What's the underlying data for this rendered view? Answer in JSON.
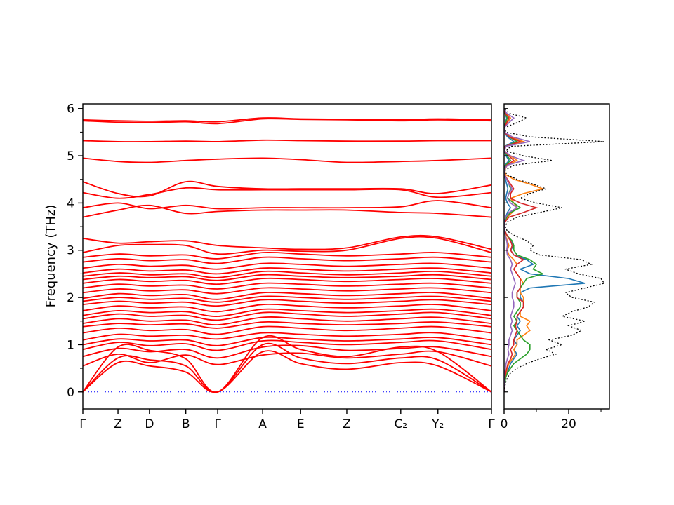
{
  "figure": {
    "background": "#ffffff"
  },
  "chart_data": {
    "type": "line",
    "description": "Phonon band structure (left) with phonon density of states (right)",
    "panels": [
      {
        "id": "bands",
        "ylabel": "Frequency (THz)",
        "ylim": [
          -0.36,
          6.1
        ],
        "yticks": [
          "0",
          "1",
          "2",
          "3",
          "4",
          "5",
          "6"
        ],
        "ytick_values": [
          0,
          1,
          2,
          3,
          4,
          5,
          6
        ],
        "yminor_values": [
          0.5,
          1.5,
          2.5,
          3.5,
          4.5,
          5.5
        ],
        "band_color": "#ff0000",
        "zero_line_color": "#0000ff",
        "kpath_labels": [
          "Γ",
          "Z",
          "D",
          "B",
          "Γ",
          "A",
          "E",
          "Z",
          "C₂",
          "Y₂",
          "Γ"
        ],
        "kpath_positions": [
          0,
          0.086,
          0.163,
          0.252,
          0.33,
          0.44,
          0.533,
          0.646,
          0.778,
          0.869,
          1.0
        ],
        "bands": [
          [
            0.0,
            0.62,
            0.55,
            0.42,
            0.0,
            0.85,
            0.6,
            0.48,
            0.62,
            0.55,
            0.0
          ],
          [
            0.0,
            0.72,
            0.68,
            0.55,
            0.0,
            1.0,
            0.72,
            0.6,
            0.72,
            0.68,
            0.0
          ],
          [
            0.0,
            0.95,
            0.88,
            0.7,
            0.0,
            1.15,
            0.9,
            0.75,
            0.95,
            0.85,
            0.0
          ],
          [
            0.55,
            0.8,
            0.62,
            0.78,
            0.58,
            0.78,
            0.82,
            0.72,
            0.8,
            0.85,
            0.55
          ],
          [
            0.75,
            0.92,
            0.85,
            0.9,
            0.72,
            0.95,
            0.98,
            0.88,
            0.92,
            0.95,
            0.75
          ],
          [
            0.9,
            1.05,
            0.98,
            1.02,
            0.88,
            1.08,
            1.05,
            1.0,
            1.05,
            1.08,
            0.9
          ],
          [
            1.0,
            1.12,
            1.08,
            1.1,
            0.98,
            1.15,
            1.12,
            1.08,
            1.12,
            1.15,
            1.0
          ],
          [
            1.1,
            1.22,
            1.18,
            1.2,
            1.12,
            1.25,
            1.22,
            1.18,
            1.22,
            1.25,
            1.1
          ],
          [
            1.25,
            1.35,
            1.3,
            1.32,
            1.22,
            1.38,
            1.35,
            1.3,
            1.35,
            1.38,
            1.25
          ],
          [
            1.38,
            1.45,
            1.42,
            1.44,
            1.35,
            1.48,
            1.45,
            1.42,
            1.45,
            1.48,
            1.38
          ],
          [
            1.45,
            1.55,
            1.5,
            1.52,
            1.42,
            1.58,
            1.55,
            1.5,
            1.55,
            1.58,
            1.45
          ],
          [
            1.55,
            1.65,
            1.6,
            1.62,
            1.52,
            1.68,
            1.65,
            1.6,
            1.65,
            1.68,
            1.55
          ],
          [
            1.62,
            1.72,
            1.68,
            1.7,
            1.6,
            1.75,
            1.72,
            1.68,
            1.72,
            1.75,
            1.62
          ],
          [
            1.72,
            1.82,
            1.78,
            1.8,
            1.7,
            1.85,
            1.82,
            1.78,
            1.82,
            1.85,
            1.72
          ],
          [
            1.85,
            1.92,
            1.88,
            1.9,
            1.82,
            1.95,
            1.92,
            1.88,
            1.92,
            1.95,
            1.85
          ],
          [
            1.92,
            2.0,
            1.96,
            1.98,
            1.9,
            2.02,
            2.0,
            1.96,
            2.0,
            2.02,
            1.92
          ],
          [
            1.98,
            2.08,
            2.04,
            2.06,
            1.96,
            2.1,
            2.08,
            2.04,
            2.08,
            2.1,
            1.98
          ],
          [
            2.1,
            2.18,
            2.14,
            2.16,
            2.08,
            2.2,
            2.18,
            2.14,
            2.18,
            2.2,
            2.1
          ],
          [
            2.2,
            2.28,
            2.24,
            2.26,
            2.18,
            2.3,
            2.28,
            2.24,
            2.28,
            2.3,
            2.2
          ],
          [
            2.3,
            2.38,
            2.34,
            2.36,
            2.28,
            2.4,
            2.38,
            2.34,
            2.38,
            2.4,
            2.3
          ],
          [
            2.38,
            2.45,
            2.42,
            2.44,
            2.36,
            2.48,
            2.45,
            2.42,
            2.45,
            2.48,
            2.38
          ],
          [
            2.45,
            2.52,
            2.48,
            2.5,
            2.42,
            2.55,
            2.52,
            2.48,
            2.52,
            2.55,
            2.45
          ],
          [
            2.52,
            2.6,
            2.56,
            2.58,
            2.5,
            2.62,
            2.6,
            2.56,
            2.6,
            2.62,
            2.52
          ],
          [
            2.62,
            2.7,
            2.66,
            2.68,
            2.6,
            2.72,
            2.7,
            2.66,
            2.7,
            2.72,
            2.62
          ],
          [
            2.75,
            2.82,
            2.78,
            2.8,
            2.72,
            2.85,
            2.82,
            2.78,
            2.82,
            2.85,
            2.75
          ],
          [
            2.85,
            2.92,
            2.88,
            2.9,
            2.82,
            2.95,
            2.92,
            2.88,
            2.92,
            2.95,
            2.85
          ],
          [
            2.95,
            3.1,
            3.12,
            3.1,
            2.92,
            3.0,
            2.98,
            3.0,
            3.25,
            3.25,
            2.95
          ],
          [
            3.25,
            3.15,
            3.18,
            3.2,
            3.1,
            3.05,
            3.02,
            3.05,
            3.28,
            3.28,
            3.02
          ],
          [
            3.7,
            3.85,
            3.95,
            3.78,
            3.82,
            3.85,
            3.85,
            3.85,
            3.8,
            3.78,
            3.7
          ],
          [
            3.9,
            4.0,
            3.88,
            3.95,
            3.88,
            3.9,
            3.9,
            3.9,
            3.92,
            4.05,
            3.9
          ],
          [
            4.22,
            4.1,
            4.18,
            4.32,
            4.28,
            4.28,
            4.28,
            4.28,
            4.28,
            4.12,
            4.22
          ],
          [
            4.45,
            4.2,
            4.15,
            4.45,
            4.35,
            4.3,
            4.3,
            4.3,
            4.3,
            4.2,
            4.38
          ],
          [
            4.95,
            4.88,
            4.86,
            4.9,
            4.93,
            4.95,
            4.92,
            4.86,
            4.88,
            4.9,
            4.95
          ],
          [
            5.32,
            5.3,
            5.3,
            5.31,
            5.3,
            5.33,
            5.32,
            5.31,
            5.31,
            5.32,
            5.32
          ],
          [
            5.74,
            5.71,
            5.7,
            5.72,
            5.68,
            5.78,
            5.77,
            5.76,
            5.74,
            5.76,
            5.74
          ],
          [
            5.76,
            5.74,
            5.73,
            5.74,
            5.72,
            5.8,
            5.78,
            5.77,
            5.76,
            5.78,
            5.76
          ]
        ]
      },
      {
        "id": "dos",
        "xlim": [
          0,
          32.6
        ],
        "xticks": [
          "0",
          "20"
        ],
        "xtick_values": [
          0,
          20
        ],
        "xminor_values": [
          10,
          30
        ],
        "freq_grid": {
          "start": 0,
          "step": 0.1,
          "count": 61
        },
        "total": {
          "name": "total-dos",
          "color": "#000000",
          "style": "dotted",
          "values": [
            0,
            0.2,
            0.5,
            1.0,
            2.0,
            4.0,
            7.0,
            11.0,
            16.0,
            13.0,
            18.0,
            14.0,
            21.0,
            24.0,
            20.0,
            25.0,
            18.0,
            21.0,
            26.0,
            28.0,
            21.0,
            19.0,
            25.0,
            31.0,
            30.0,
            23.0,
            19.0,
            27.0,
            24.0,
            11.0,
            8.0,
            9.0,
            7.0,
            3.5,
            1.0,
            0.4,
            1.0,
            4.0,
            11.0,
            18.0,
            10.0,
            5.0,
            8.0,
            13.0,
            9.0,
            4.0,
            0.8,
            0.4,
            3.0,
            15.0,
            6.0,
            0.6,
            2.0,
            31.0,
            8.0,
            0.5,
            0.3,
            4.0,
            7.0,
            1.5,
            0
          ]
        },
        "partials": [
          {
            "name": "pdos-1",
            "color": "#1f77b4",
            "values": [
              0,
              0.1,
              0.2,
              0.4,
              0.8,
              1.5,
              2,
              3,
              4,
              3,
              4,
              3,
              4,
              5,
              4,
              5,
              4,
              5,
              6,
              6,
              5,
              5,
              8,
              25,
              20,
              8,
              5,
              9,
              7,
              3,
              2,
              3,
              2,
              1,
              0.3,
              0.1,
              0.2,
              0.5,
              1,
              2,
              1,
              0.5,
              0.8,
              1.2,
              0.8,
              0.4,
              0.1,
              0.1,
              0.3,
              1.5,
              0.6,
              0.1,
              0.2,
              3,
              1,
              0.1,
              0.1,
              0.4,
              0.8,
              0.2,
              0
            ]
          },
          {
            "name": "pdos-2",
            "color": "#ff7f0e",
            "values": [
              0,
              0.1,
              0.2,
              0.3,
              0.6,
              1,
              1.5,
              2.5,
              3.5,
              3,
              4,
              4,
              6,
              8,
              7,
              8,
              5,
              5,
              6,
              6,
              6,
              5,
              5,
              6,
              5,
              4,
              3,
              4,
              3,
              1.5,
              1,
              1.5,
              1,
              0.5,
              0.2,
              0.1,
              0.3,
              1,
              2.5,
              4,
              3,
              2,
              6,
              12,
              8,
              3,
              0.5,
              0.2,
              1,
              4,
              2,
              0.2,
              0.5,
              6,
              2,
              0.2,
              0.1,
              1,
              2,
              0.5,
              0
            ]
          },
          {
            "name": "pdos-3",
            "color": "#2ca02c",
            "values": [
              0,
              0.1,
              0.3,
              0.5,
              1,
              2,
              3,
              5,
              7,
              8,
              8,
              6,
              5,
              4,
              3,
              4,
              3,
              4,
              5,
              5,
              4,
              4,
              5,
              6,
              7,
              12,
              9,
              10,
              8,
              4,
              3,
              3,
              2.5,
              1,
              0.3,
              0.1,
              0.2,
              0.8,
              2,
              5,
              3,
              1,
              1.5,
              2,
              1.5,
              0.8,
              0.2,
              0.1,
              0.5,
              2,
              1,
              0.1,
              0.3,
              4,
              1.5,
              0.1,
              0.1,
              0.5,
              1,
              0.3,
              0
            ]
          },
          {
            "name": "pdos-4",
            "color": "#d62728",
            "values": [
              0,
              0.05,
              0.15,
              0.3,
              0.5,
              0.8,
              1.2,
              2,
              2.5,
              2,
              3,
              3,
              3.5,
              4,
              3.5,
              4,
              4,
              5,
              6,
              6,
              4,
              4,
              5,
              5,
              5,
              4,
              3,
              4,
              6,
              3,
              2,
              2.5,
              2,
              1,
              0.3,
              0.1,
              0.3,
              1.5,
              6,
              10,
              5,
              2,
              2,
              3,
              2,
              1,
              0.2,
              0.1,
              0.8,
              3,
              1.5,
              0.2,
              0.3,
              5,
              1.5,
              0.1,
              0.1,
              0.8,
              1.5,
              0.4,
              0
            ]
          },
          {
            "name": "pdos-5",
            "color": "#9467bd",
            "values": [
              0,
              0.02,
              0.05,
              0.1,
              0.2,
              0.4,
              0.6,
              1,
              1.5,
              1.2,
              1.5,
              1.5,
              2,
              2.5,
              2,
              2.5,
              2,
              2.5,
              3,
              3,
              2.5,
              2.5,
              3,
              3.5,
              3,
              2.5,
              2,
              2.5,
              2,
              1,
              0.8,
              1,
              0.8,
              0.4,
              0.1,
              0.05,
              0.1,
              0.5,
              1.5,
              4,
              2,
              1,
              1.5,
              2.5,
              1.5,
              0.8,
              0.1,
              0.05,
              1,
              6,
              2,
              0.2,
              0.5,
              8,
              2.5,
              0.2,
              0.1,
              1.5,
              3,
              0.8,
              0
            ]
          }
        ]
      }
    ]
  }
}
